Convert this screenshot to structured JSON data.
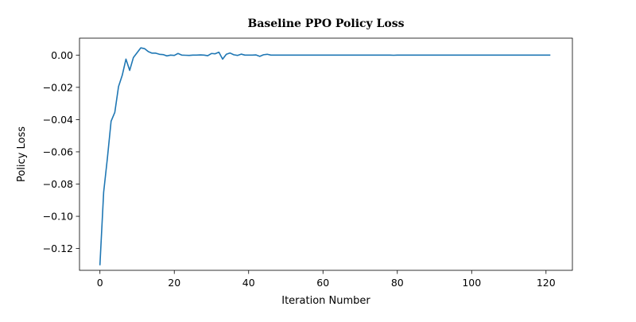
{
  "chart_data": {
    "type": "line",
    "title": "Baseline PPO Policy Loss",
    "xlabel": "Iteration Number",
    "ylabel": "Policy Loss",
    "xlim": [
      -5.5,
      127.1
    ],
    "ylim": [
      -0.1335,
      0.0105
    ],
    "xticks": [
      0,
      20,
      40,
      60,
      80,
      100,
      120
    ],
    "xtick_labels": [
      "0",
      "20",
      "40",
      "60",
      "80",
      "100",
      "120"
    ],
    "yticks": [
      -0.12,
      -0.1,
      -0.08,
      -0.06,
      -0.04,
      -0.02,
      0.0
    ],
    "ytick_labels": [
      "−0.12",
      "−0.10",
      "−0.08",
      "−0.06",
      "−0.04",
      "−0.02",
      "0.00"
    ],
    "grid": false,
    "legend": "none",
    "series": [
      {
        "color": "#1f77b4",
        "x": [
          0,
          1,
          2,
          3,
          4,
          5,
          6,
          7,
          8,
          9,
          10,
          11,
          12,
          13,
          14,
          15,
          16,
          17,
          18,
          19,
          20,
          21,
          22,
          23,
          24,
          25,
          26,
          27,
          28,
          29,
          30,
          31,
          32,
          33,
          34,
          35,
          36,
          37,
          38,
          39,
          40,
          41,
          42,
          43,
          44,
          45,
          46,
          47,
          48,
          49,
          50,
          51,
          52,
          53,
          54,
          55,
          56,
          57,
          58,
          59,
          60,
          61,
          62,
          63,
          64,
          65,
          66,
          67,
          68,
          69,
          70,
          71,
          72,
          73,
          74,
          75,
          76,
          77,
          78,
          79,
          80,
          81,
          82,
          83,
          84,
          85,
          86,
          87,
          88,
          89,
          90,
          91,
          92,
          93,
          94,
          95,
          96,
          97,
          98,
          99,
          100,
          101,
          102,
          103,
          104,
          105,
          106,
          107,
          108,
          109,
          110,
          111,
          112,
          113,
          114,
          115,
          116,
          117,
          118,
          119,
          120,
          121
        ],
        "y": [
          -0.13,
          -0.085,
          -0.064,
          -0.041,
          -0.0355,
          -0.0195,
          -0.0125,
          -0.0025,
          -0.0095,
          -0.0015,
          0.0015,
          0.0045,
          0.004,
          0.0022,
          0.0012,
          0.0012,
          0.0005,
          0.0003,
          -0.0005,
          0.0,
          -0.0002,
          0.001,
          0.0,
          -0.0001,
          -0.0002,
          0.0,
          0.0,
          0.0001,
          0.0,
          -0.0004,
          0.001,
          0.0008,
          0.0018,
          -0.0025,
          0.0005,
          0.0013,
          0.0002,
          -0.0002,
          0.0006,
          0.0,
          0.0,
          0.0,
          0.0001,
          -0.0008,
          0.0002,
          0.0005,
          0.0,
          0.0,
          0.0,
          0.0,
          0.0,
          0.0,
          0.0,
          0.0,
          0.0,
          0.0,
          0.0,
          0.0,
          0.0,
          0.0,
          0.0,
          0.0,
          0.0,
          0.0,
          0.0,
          0.0,
          0.0,
          0.0,
          0.0,
          0.0,
          0.0,
          0.0,
          0.0,
          0.0,
          0.0,
          0.0,
          0.0,
          0.0,
          0.0,
          -0.0001,
          0.0,
          0.0,
          0.0,
          0.0,
          0.0,
          0.0,
          0.0,
          0.0,
          0.0,
          0.0,
          0.0,
          0.0,
          0.0,
          0.0,
          0.0,
          0.0,
          0.0,
          0.0,
          0.0,
          0.0,
          0.0,
          0.0,
          0.0,
          0.0,
          0.0,
          0.0,
          0.0,
          0.0,
          0.0,
          0.0,
          0.0,
          0.0,
          0.0,
          0.0,
          0.0,
          0.0,
          0.0,
          0.0,
          0.0,
          0.0,
          0.0,
          0.0
        ]
      }
    ]
  }
}
